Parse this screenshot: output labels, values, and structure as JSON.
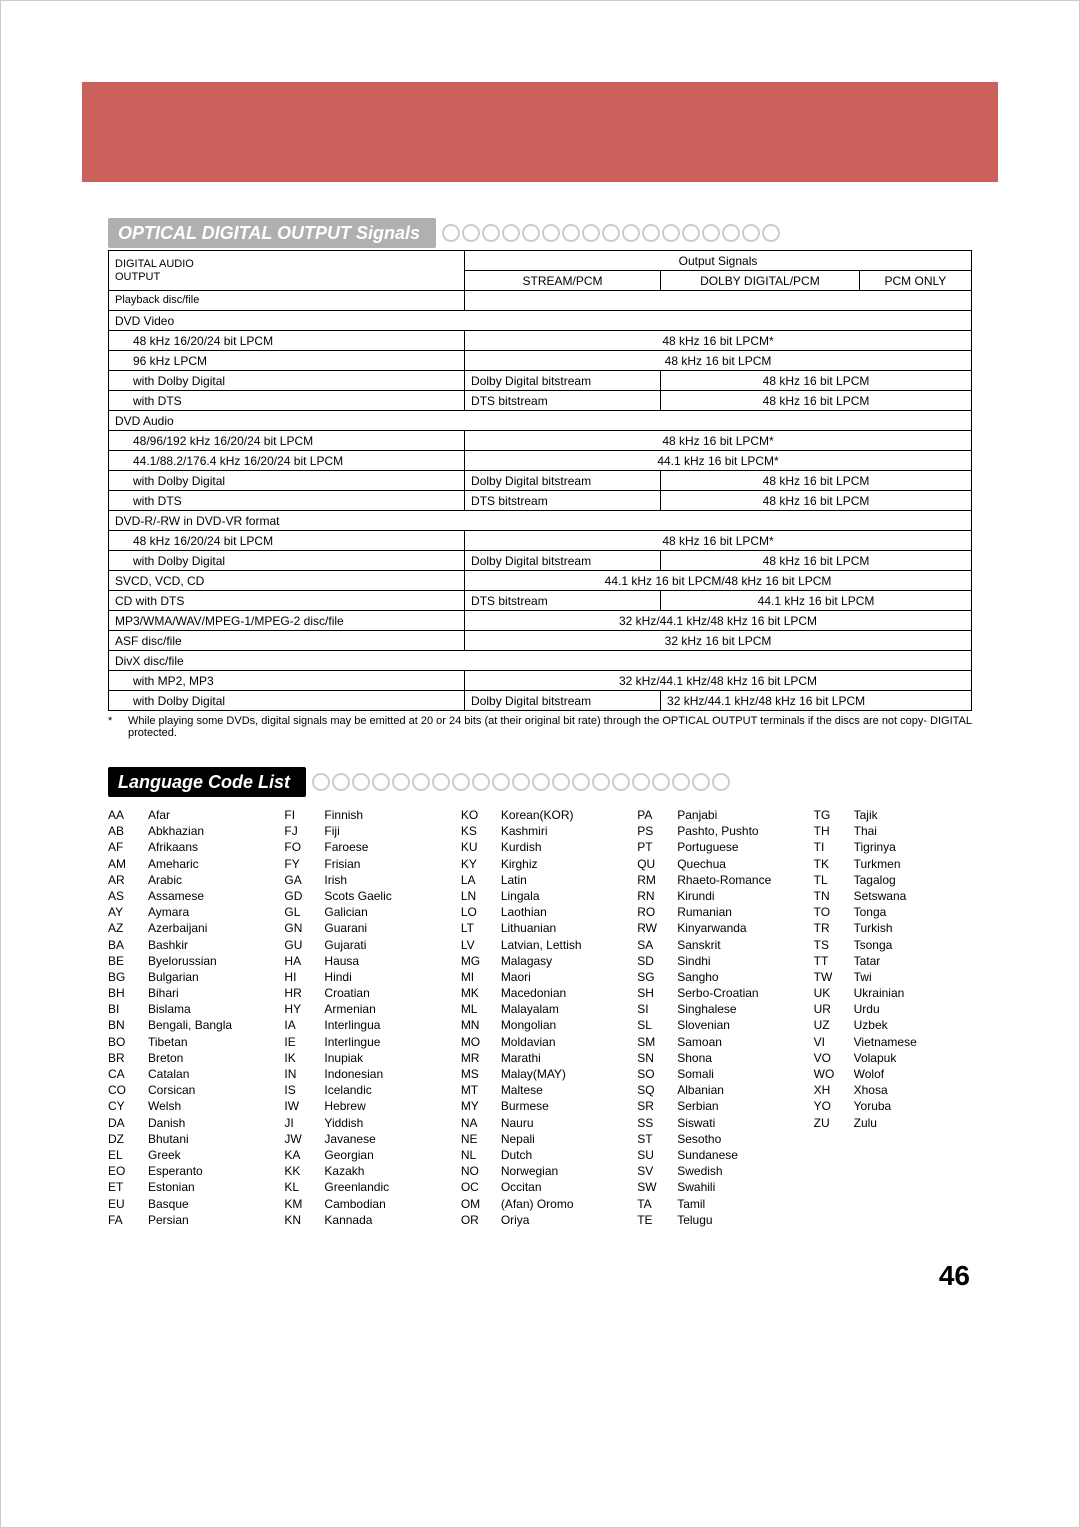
{
  "page_number": "46",
  "section1_title": "OPTICAL DIGITAL OUTPUT Signals",
  "section2_title": "Language Code List",
  "table": {
    "header_top_left_l1": "DIGITAL AUDIO",
    "header_top_left_l2": "OUTPUT",
    "header_bottom_left": "Playback disc/file",
    "header_output": "Output Signals",
    "col_stream": "STREAM/PCM",
    "col_dolby": "DOLBY DIGITAL/PCM",
    "col_pcm": "PCM ONLY",
    "rows": {
      "r1": "DVD Video",
      "r2a": "48 kHz 16/20/24 bit LPCM",
      "r2b": "48 kHz 16 bit LPCM*",
      "r3a": "96 kHz LPCM",
      "r3b": "48 kHz 16 bit LPCM",
      "r4a": "with Dolby Digital",
      "r4b": "Dolby Digital bitstream",
      "r4c": "48 kHz 16 bit LPCM",
      "r5a": "with DTS",
      "r5b": "DTS bitstream",
      "r5c": "48 kHz 16 bit LPCM",
      "r6": "DVD Audio",
      "r7a": "48/96/192 kHz 16/20/24 bit LPCM",
      "r7b": "48 kHz 16 bit LPCM*",
      "r8a": "44.1/88.2/176.4 kHz 16/20/24 bit LPCM",
      "r8b": "44.1 kHz 16 bit LPCM*",
      "r9a": "with Dolby Digital",
      "r9b": "Dolby Digital bitstream",
      "r9c": "48 kHz 16 bit LPCM",
      "r10a": "with DTS",
      "r10b": "DTS bitstream",
      "r10c": "48 kHz 16 bit LPCM",
      "r11": "DVD-R/-RW in DVD-VR format",
      "r12a": "48 kHz 16/20/24 bit LPCM",
      "r12b": "48 kHz 16 bit LPCM*",
      "r13a": "with Dolby Digital",
      "r13b": "Dolby Digital bitstream",
      "r13c": "48 kHz 16 bit LPCM",
      "r14a": "SVCD, VCD, CD",
      "r14b": "44.1 kHz 16 bit LPCM/48 kHz 16 bit LPCM",
      "r15a": "CD with DTS",
      "r15b": "DTS bitstream",
      "r15c": "44.1 kHz 16 bit LPCM",
      "r16a": "MP3/WMA/WAV/MPEG-1/MPEG-2 disc/file",
      "r16b": "32 kHz/44.1 kHz/48 kHz 16 bit LPCM",
      "r17a": "ASF disc/file",
      "r17b": "32 kHz 16 bit LPCM",
      "r18": "DivX disc/file",
      "r19a": "with MP2, MP3",
      "r19b": "32 kHz/44.1 kHz/48 kHz 16 bit LPCM",
      "r20a": "with Dolby Digital",
      "r20b": "Dolby Digital bitstream",
      "r20c": "32 kHz/44.1 kHz/48 kHz 16 bit LPCM"
    }
  },
  "footnote": {
    "star": "*",
    "left": "While playing some DVDs, digital signals may be emitted at 20 or 24 bits (at their original bit rate) through the OPTICAL OUTPUT terminals if the discs are not copy-protected.",
    "right": "DIGITAL"
  },
  "languages": {
    "col1": [
      [
        "AA",
        "Afar"
      ],
      [
        "AB",
        "Abkhazian"
      ],
      [
        "AF",
        "Afrikaans"
      ],
      [
        "AM",
        "Ameharic"
      ],
      [
        "AR",
        "Arabic"
      ],
      [
        "AS",
        "Assamese"
      ],
      [
        "AY",
        "Aymara"
      ],
      [
        "AZ",
        "Azerbaijani"
      ],
      [
        "BA",
        "Bashkir"
      ],
      [
        "BE",
        "Byelorussian"
      ],
      [
        "BG",
        "Bulgarian"
      ],
      [
        "BH",
        "Bihari"
      ],
      [
        "BI",
        "Bislama"
      ],
      [
        "BN",
        "Bengali, Bangla"
      ],
      [
        "BO",
        "Tibetan"
      ],
      [
        "BR",
        "Breton"
      ],
      [
        "CA",
        "Catalan"
      ],
      [
        "CO",
        "Corsican"
      ],
      [
        "CY",
        "Welsh"
      ],
      [
        "DA",
        "Danish"
      ],
      [
        "DZ",
        "Bhutani"
      ],
      [
        "EL",
        "Greek"
      ],
      [
        "EO",
        "Esperanto"
      ],
      [
        "ET",
        "Estonian"
      ],
      [
        "EU",
        "Basque"
      ],
      [
        "FA",
        "Persian"
      ]
    ],
    "col2": [
      [
        "FI",
        "Finnish"
      ],
      [
        "FJ",
        "Fiji"
      ],
      [
        "FO",
        "Faroese"
      ],
      [
        "FY",
        "Frisian"
      ],
      [
        "GA",
        "Irish"
      ],
      [
        "GD",
        "Scots Gaelic"
      ],
      [
        "GL",
        "Galician"
      ],
      [
        "GN",
        "Guarani"
      ],
      [
        "GU",
        "Gujarati"
      ],
      [
        "HA",
        "Hausa"
      ],
      [
        "HI",
        "Hindi"
      ],
      [
        "HR",
        "Croatian"
      ],
      [
        "HY",
        "Armenian"
      ],
      [
        "IA",
        "Interlingua"
      ],
      [
        "IE",
        "Interlingue"
      ],
      [
        "IK",
        "Inupiak"
      ],
      [
        "IN",
        "Indonesian"
      ],
      [
        "IS",
        "Icelandic"
      ],
      [
        "IW",
        "Hebrew"
      ],
      [
        "JI",
        "Yiddish"
      ],
      [
        "JW",
        "Javanese"
      ],
      [
        "KA",
        "Georgian"
      ],
      [
        "KK",
        "Kazakh"
      ],
      [
        "KL",
        "Greenlandic"
      ],
      [
        "KM",
        "Cambodian"
      ],
      [
        "KN",
        "Kannada"
      ]
    ],
    "col3": [
      [
        "KO",
        "Korean(KOR)"
      ],
      [
        "KS",
        "Kashmiri"
      ],
      [
        "KU",
        "Kurdish"
      ],
      [
        "KY",
        "Kirghiz"
      ],
      [
        "LA",
        "Latin"
      ],
      [
        "LN",
        "Lingala"
      ],
      [
        "LO",
        "Laothian"
      ],
      [
        "LT",
        "Lithuanian"
      ],
      [
        "LV",
        "Latvian, Lettish"
      ],
      [
        "MG",
        "Malagasy"
      ],
      [
        "MI",
        "Maori"
      ],
      [
        "MK",
        "Macedonian"
      ],
      [
        "ML",
        "Malayalam"
      ],
      [
        "MN",
        "Mongolian"
      ],
      [
        "MO",
        "Moldavian"
      ],
      [
        "MR",
        "Marathi"
      ],
      [
        "MS",
        "Malay(MAY)"
      ],
      [
        "MT",
        "Maltese"
      ],
      [
        "MY",
        "Burmese"
      ],
      [
        "NA",
        "Nauru"
      ],
      [
        "NE",
        "Nepali"
      ],
      [
        "NL",
        "Dutch"
      ],
      [
        "NO",
        "Norwegian"
      ],
      [
        "OC",
        "Occitan"
      ],
      [
        "OM",
        "(Afan) Oromo"
      ],
      [
        "OR",
        "Oriya"
      ]
    ],
    "col4": [
      [
        "PA",
        "Panjabi"
      ],
      [
        "PS",
        "Pashto, Pushto"
      ],
      [
        "PT",
        "Portuguese"
      ],
      [
        "QU",
        "Quechua"
      ],
      [
        "RM",
        "Rhaeto-Romance"
      ],
      [
        "RN",
        "Kirundi"
      ],
      [
        "RO",
        "Rumanian"
      ],
      [
        "RW",
        "Kinyarwanda"
      ],
      [
        "SA",
        "Sanskrit"
      ],
      [
        "SD",
        "Sindhi"
      ],
      [
        "SG",
        "Sangho"
      ],
      [
        "SH",
        "Serbo-Croatian"
      ],
      [
        "SI",
        "Singhalese"
      ],
      [
        "SL",
        "Slovenian"
      ],
      [
        "SM",
        "Samoan"
      ],
      [
        "SN",
        "Shona"
      ],
      [
        "SO",
        "Somali"
      ],
      [
        "SQ",
        "Albanian"
      ],
      [
        "SR",
        "Serbian"
      ],
      [
        "SS",
        "Siswati"
      ],
      [
        "ST",
        "Sesotho"
      ],
      [
        "SU",
        "Sundanese"
      ],
      [
        "SV",
        "Swedish"
      ],
      [
        "SW",
        "Swahili"
      ],
      [
        "TA",
        "Tamil"
      ],
      [
        "TE",
        "Telugu"
      ]
    ],
    "col5": [
      [
        "TG",
        "Tajik"
      ],
      [
        "TH",
        "Thai"
      ],
      [
        "TI",
        "Tigrinya"
      ],
      [
        "TK",
        "Turkmen"
      ],
      [
        "TL",
        "Tagalog"
      ],
      [
        "TN",
        "Setswana"
      ],
      [
        "TO",
        "Tonga"
      ],
      [
        "TR",
        "Turkish"
      ],
      [
        "TS",
        "Tsonga"
      ],
      [
        "TT",
        "Tatar"
      ],
      [
        "TW",
        "Twi"
      ],
      [
        "UK",
        "Ukrainian"
      ],
      [
        "UR",
        "Urdu"
      ],
      [
        "UZ",
        "Uzbek"
      ],
      [
        "VI",
        "Vietnamese"
      ],
      [
        "VO",
        "Volapuk"
      ],
      [
        "WO",
        "Wolof"
      ],
      [
        "XH",
        "Xhosa"
      ],
      [
        "YO",
        "Yoruba"
      ],
      [
        "ZU",
        "Zulu"
      ]
    ]
  }
}
